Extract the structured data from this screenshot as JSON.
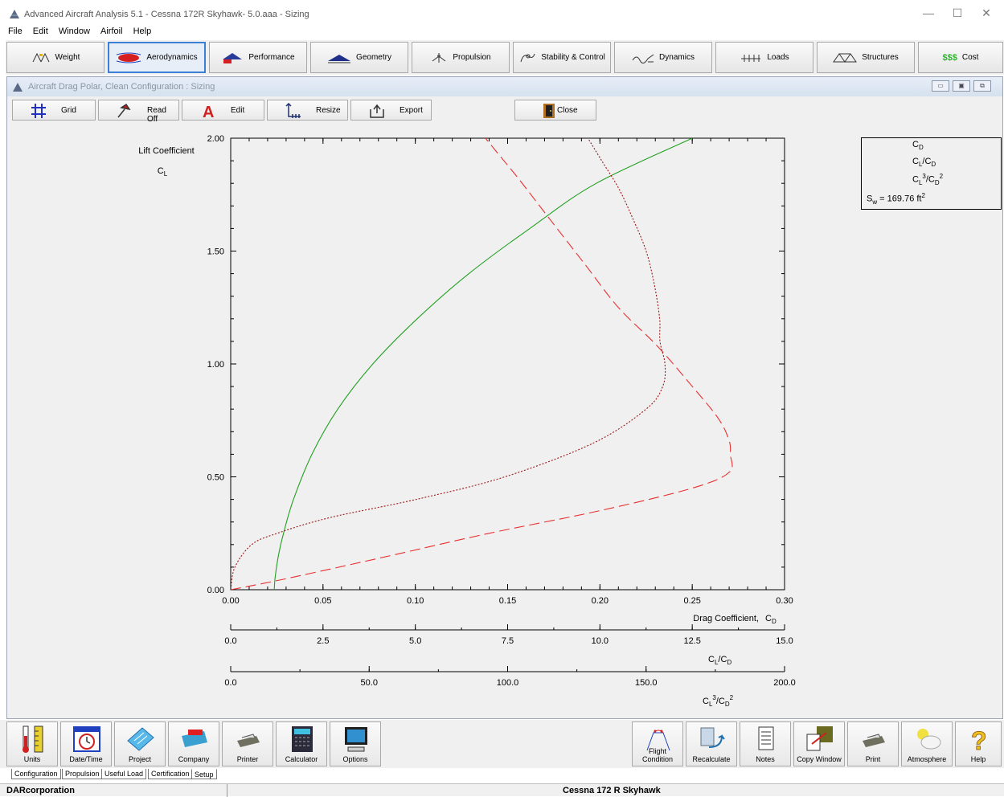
{
  "app": {
    "title": "Advanced Aircraft Analysis 5.1 - Cessna 172R Skyhawk- 5.0.aaa - Sizing",
    "minimize_glyph": "—",
    "maximize_glyph": "☐",
    "close_glyph": "✕"
  },
  "menu": [
    "File",
    "Edit",
    "Window",
    "Airfoil",
    "Help"
  ],
  "modules": [
    {
      "label": "Weight",
      "icon": "weight-scale-icon"
    },
    {
      "label": "Aerodynamics",
      "icon": "airfoil-flow-icon",
      "active": true
    },
    {
      "label": "Performance",
      "icon": "performance-plane-icon"
    },
    {
      "label": "Geometry",
      "icon": "wing-geometry-icon"
    },
    {
      "label": "Propulsion",
      "icon": "propeller-icon"
    },
    {
      "label": "Stability & Control",
      "icon": "stability-icon"
    },
    {
      "label": "Dynamics",
      "icon": "dynamics-icon"
    },
    {
      "label": "Loads",
      "icon": "loads-icon"
    },
    {
      "label": "Structures",
      "icon": "truss-icon"
    },
    {
      "label": "Cost",
      "icon": "dollar-icon",
      "icon_text": "$$$"
    }
  ],
  "child_window": {
    "title": "Aircraft Drag Polar, Clean Configuration : Sizing",
    "controls": [
      "▭",
      "▣",
      "⧉"
    ]
  },
  "plot_toolbar": [
    {
      "label": "Grid",
      "icon": "grid-icon"
    },
    {
      "label": "Read Off",
      "icon": "read-off-icon"
    },
    {
      "label": "Edit",
      "icon": "edit-letter-icon"
    },
    {
      "label": "Resize",
      "icon": "resize-axes-icon"
    },
    {
      "label": "Export",
      "icon": "export-icon"
    },
    {
      "label": "Close",
      "icon": "close-door-icon"
    }
  ],
  "chart_data": {
    "type": "line",
    "ylabel": "Lift Coefficient",
    "ylabel_symbol": "C",
    "ylabel_symbol_sub": "L",
    "ylim": [
      0,
      2.0
    ],
    "y_ticks": [
      "0.00",
      "0.50",
      "1.00",
      "1.50",
      "2.00"
    ],
    "axes": [
      {
        "label": "Drag Coefficient,",
        "symbol": "C",
        "symbol_sub": "D",
        "lim": [
          0,
          0.3
        ],
        "ticks": [
          "0.00",
          "0.05",
          "0.10",
          "0.15",
          "0.20",
          "0.25",
          "0.30"
        ]
      },
      {
        "label": "C_L/C_D",
        "lim": [
          0,
          15.0
        ],
        "ticks": [
          "0.0",
          "2.5",
          "5.0",
          "7.5",
          "10.0",
          "12.5",
          "15.0"
        ]
      },
      {
        "label": "C_L^3/C_D^2",
        "lim": [
          0,
          200.0
        ],
        "ticks": [
          "0.0",
          "50.0",
          "100.0",
          "150.0",
          "200.0"
        ]
      }
    ],
    "series": [
      {
        "name": "C_D",
        "style": "solid",
        "color": "#22a022",
        "x_axis": 0,
        "points": [
          [
            0.0236,
            0.0
          ],
          [
            0.024,
            0.05
          ],
          [
            0.0258,
            0.15
          ],
          [
            0.0286,
            0.25
          ],
          [
            0.034,
            0.4
          ],
          [
            0.044,
            0.6
          ],
          [
            0.058,
            0.8
          ],
          [
            0.077,
            1.0
          ],
          [
            0.101,
            1.2
          ],
          [
            0.129,
            1.4
          ],
          [
            0.162,
            1.6
          ],
          [
            0.198,
            1.8
          ],
          [
            0.25,
            2.0
          ]
        ]
      },
      {
        "name": "C_L/C_D",
        "style": "dashed",
        "color": "#e83030",
        "x_axis": 1,
        "points": [
          [
            0.0,
            0.0
          ],
          [
            1.53,
            0.05
          ],
          [
            4.3,
            0.15
          ],
          [
            7.0,
            0.25
          ],
          [
            10.0,
            0.35
          ],
          [
            12.5,
            0.45
          ],
          [
            13.5,
            0.52
          ],
          [
            13.53,
            0.6
          ],
          [
            13.5,
            0.66
          ],
          [
            13.2,
            0.76
          ],
          [
            12.45,
            0.91
          ],
          [
            11.55,
            1.08
          ],
          [
            10.5,
            1.25
          ],
          [
            9.6,
            1.44
          ],
          [
            8.65,
            1.64
          ],
          [
            7.8,
            1.82
          ],
          [
            7.3,
            1.92
          ],
          [
            6.9,
            2.0
          ]
        ]
      },
      {
        "name": "C_L^3/C_D^2",
        "style": "dotted",
        "color": "#9a1818",
        "x_axis": 2,
        "points": [
          [
            0.0,
            0.0
          ],
          [
            1.5,
            0.1
          ],
          [
            7.6,
            0.2
          ],
          [
            16.8,
            0.25
          ],
          [
            36.0,
            0.32
          ],
          [
            67.0,
            0.4
          ],
          [
            99.0,
            0.5
          ],
          [
            131.0,
            0.65
          ],
          [
            150.0,
            0.8
          ],
          [
            156.0,
            0.9
          ],
          [
            156.8,
            1.0
          ],
          [
            155.0,
            1.1
          ],
          [
            154.9,
            1.2
          ],
          [
            153.0,
            1.35
          ],
          [
            150.0,
            1.5
          ],
          [
            145.0,
            1.65
          ],
          [
            140.0,
            1.78
          ],
          [
            134.0,
            1.9
          ],
          [
            129.0,
            2.0
          ]
        ]
      }
    ],
    "legend": [
      "C_D",
      "C_L/C_D",
      "C_L^3/C_D^2"
    ],
    "legend_note": "S_w = 169.76 ft^2",
    "legend_position": "top-right"
  },
  "legend_display": {
    "cd": {
      "base": "C",
      "sub": "D"
    },
    "clcd": {
      "a": "C",
      "asub": "L",
      "slash": "/C",
      "bsub": "D"
    },
    "cl3cd2": {
      "a": "C",
      "asub": "L",
      "asup": "3",
      "slash": "/C",
      "bsub": "D",
      "bsup": "2"
    },
    "sw": {
      "a": "S",
      "asub": "w",
      "rest": " = 169.76 ft",
      "sup": "2"
    }
  },
  "bottom_buttons": [
    {
      "label": "Units",
      "icon": "thermometer-ruler-icon"
    },
    {
      "label": "Date/Time",
      "icon": "calendar-clock-icon"
    },
    {
      "label": "Project",
      "icon": "blueprint-icon"
    },
    {
      "label": "Company",
      "icon": "company-logo-icon"
    },
    {
      "label": "Printer",
      "icon": "printer-icon"
    },
    {
      "label": "Calculator",
      "icon": "calculator-icon"
    },
    {
      "label": "Options",
      "icon": "options-monitor-icon"
    },
    {
      "label": "Flight Condition",
      "icon": "flight-condition-icon"
    },
    {
      "label": "Recalculate",
      "icon": "recalculate-icon"
    },
    {
      "label": "Notes",
      "icon": "notes-icon"
    },
    {
      "label": "Copy Window",
      "icon": "copy-window-icon"
    },
    {
      "label": "Print",
      "icon": "print-icon"
    },
    {
      "label": "Atmosphere",
      "icon": "atmosphere-cloud-icon"
    },
    {
      "label": "Help",
      "icon": "help-question-icon"
    }
  ],
  "sheet_tabs": [
    "Configuration",
    "Propulsion",
    "Useful Load",
    "Certification",
    "Setup"
  ],
  "status": {
    "left": "DARcorporation",
    "center": "Cessna 172 R Skyhawk"
  }
}
